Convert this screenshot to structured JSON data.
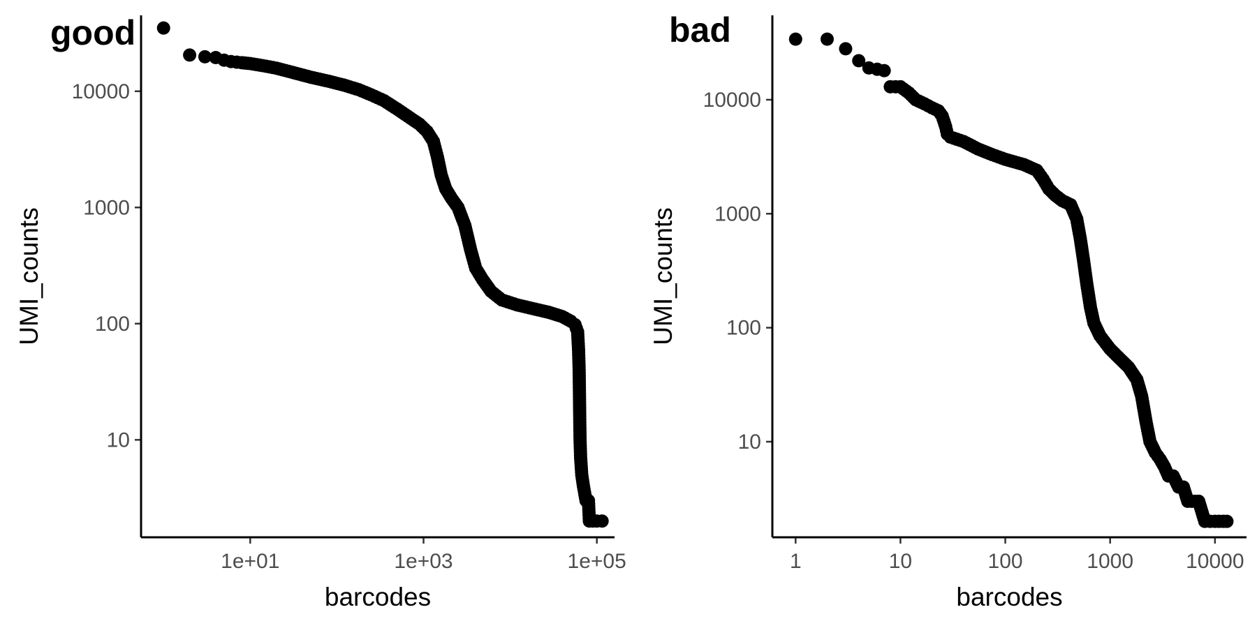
{
  "chart_data": [
    {
      "type": "scatter",
      "tag": "good",
      "xlabel": "barcodes",
      "ylabel": "UMI_counts",
      "x_scale": "log10",
      "y_scale": "log10",
      "xlim": [
        0.55,
        160000
      ],
      "ylim": [
        1.45,
        45000
      ],
      "x_ticks": [
        10,
        1000,
        100000
      ],
      "x_tick_labels": [
        "1e+01",
        "1e+03",
        "1e+05"
      ],
      "y_ticks": [
        10,
        100,
        1000,
        10000
      ],
      "y_tick_labels": [
        "10",
        "100",
        "1000",
        "10000"
      ],
      "grid": false,
      "legend": "none",
      "marker_color": "#000000",
      "series": [
        {
          "points": [
            [
              1,
              35000
            ],
            [
              2,
              20500
            ],
            [
              3,
              19800
            ],
            [
              4,
              19500
            ],
            [
              5,
              18500
            ],
            [
              6,
              18000
            ],
            [
              7,
              17800
            ],
            [
              8,
              17600
            ],
            [
              10,
              17300
            ],
            [
              14,
              16600
            ],
            [
              20,
              15800
            ],
            [
              30,
              14600
            ],
            [
              50,
              13200
            ],
            [
              80,
              12200
            ],
            [
              120,
              11300
            ],
            [
              180,
              10300
            ],
            [
              250,
              9300
            ],
            [
              350,
              8300
            ],
            [
              500,
              7000
            ],
            [
              700,
              5900
            ],
            [
              900,
              5200
            ],
            [
              1100,
              4500
            ],
            [
              1300,
              3700
            ],
            [
              1450,
              2700
            ],
            [
              1600,
              1900
            ],
            [
              1800,
              1450
            ],
            [
              2100,
              1200
            ],
            [
              2500,
              1000
            ],
            [
              3000,
              700
            ],
            [
              3500,
              430
            ],
            [
              4000,
              300
            ],
            [
              4800,
              240
            ],
            [
              6000,
              190
            ],
            [
              8000,
              160
            ],
            [
              12000,
              145
            ],
            [
              18000,
              135
            ],
            [
              28000,
              125
            ],
            [
              40000,
              115
            ],
            [
              50000,
              105
            ],
            [
              56000,
              98
            ],
            [
              60000,
              85
            ],
            [
              61500,
              60
            ],
            [
              62500,
              40
            ],
            [
              63000,
              25
            ],
            [
              63500,
              15
            ],
            [
              64000,
              10
            ],
            [
              65000,
              7
            ],
            [
              67000,
              5
            ],
            [
              70000,
              4
            ],
            [
              75000,
              3
            ],
            [
              80000,
              3
            ],
            [
              82000,
              2
            ],
            [
              90000,
              2
            ],
            [
              100000,
              2
            ],
            [
              115000,
              2
            ]
          ]
        }
      ]
    },
    {
      "type": "scatter",
      "tag": "bad",
      "xlabel": "barcodes",
      "ylabel": "UMI_counts",
      "x_scale": "log10",
      "y_scale": "log10",
      "xlim": [
        0.6,
        20000
      ],
      "ylim": [
        1.45,
        55000
      ],
      "x_ticks": [
        1,
        10,
        100,
        1000,
        10000
      ],
      "x_tick_labels": [
        "1",
        "10",
        "100",
        "1000",
        "10000"
      ],
      "y_ticks": [
        10,
        100,
        1000,
        10000
      ],
      "y_tick_labels": [
        "10",
        "100",
        "1000",
        "10000"
      ],
      "grid": false,
      "legend": "none",
      "marker_color": "#000000",
      "series": [
        {
          "points": [
            [
              1,
              34000
            ],
            [
              2,
              34000
            ],
            [
              3,
              28000
            ],
            [
              4,
              22000
            ],
            [
              5,
              19000
            ],
            [
              6,
              18500
            ],
            [
              7,
              18000
            ],
            [
              8,
              13000
            ],
            [
              9,
              13000
            ],
            [
              10,
              13000
            ],
            [
              12,
              11500
            ],
            [
              14,
              10000
            ],
            [
              17,
              9200
            ],
            [
              20,
              8500
            ],
            [
              23,
              8000
            ],
            [
              25,
              7200
            ],
            [
              27,
              5800
            ],
            [
              28,
              5000
            ],
            [
              30,
              4700
            ],
            [
              40,
              4300
            ],
            [
              55,
              3700
            ],
            [
              75,
              3300
            ],
            [
              100,
              3000
            ],
            [
              150,
              2700
            ],
            [
              200,
              2400
            ],
            [
              230,
              2000
            ],
            [
              260,
              1650
            ],
            [
              300,
              1450
            ],
            [
              350,
              1300
            ],
            [
              420,
              1200
            ],
            [
              480,
              900
            ],
            [
              520,
              600
            ],
            [
              560,
              380
            ],
            [
              600,
              240
            ],
            [
              650,
              150
            ],
            [
              700,
              110
            ],
            [
              800,
              85
            ],
            [
              1000,
              65
            ],
            [
              1200,
              55
            ],
            [
              1500,
              45
            ],
            [
              1800,
              35
            ],
            [
              2000,
              25
            ],
            [
              2200,
              15
            ],
            [
              2400,
              10
            ],
            [
              2700,
              8
            ],
            [
              3000,
              7
            ],
            [
              3300,
              6
            ],
            [
              3600,
              5
            ],
            [
              4000,
              5
            ],
            [
              4500,
              4
            ],
            [
              5000,
              4
            ],
            [
              5500,
              3
            ],
            [
              6000,
              3
            ],
            [
              7000,
              3
            ],
            [
              8000,
              2
            ],
            [
              9000,
              2
            ],
            [
              10000,
              2
            ],
            [
              12000,
              2
            ],
            [
              13000,
              2
            ]
          ]
        }
      ]
    }
  ]
}
